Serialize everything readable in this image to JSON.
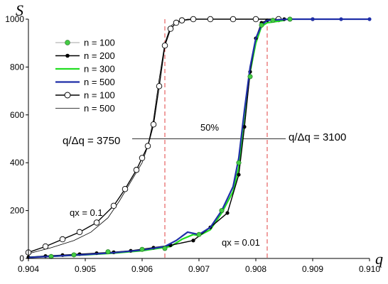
{
  "chart_data": {
    "type": "line",
    "xlabel": "q",
    "ylabel": "S",
    "xlim": [
      0.904,
      0.91
    ],
    "ylim": [
      0,
      1000
    ],
    "x_ticks": [
      "0.904",
      "0.905",
      "0.906",
      "0.907",
      "0.908",
      "0.909",
      "0.910"
    ],
    "y_ticks": [
      "0",
      "200",
      "400",
      "600",
      "800",
      "1000"
    ],
    "grid": false,
    "legend_position": "top-left",
    "annotations": {
      "label_left": "q/Δq = 3750",
      "label_right": "q/Δq = 3100",
      "percent_label": "50%",
      "qx_left": "qx = 0.1",
      "qx_right": "qx = 0.01",
      "half_level": 500,
      "vline_left": 0.9064,
      "vline_right": 0.9082
    },
    "series": [
      {
        "name": "n = 100",
        "color": "#33cc33",
        "marker": "filled-circle-green",
        "line": "none",
        "x": [
          0.9044,
          0.9048,
          0.9054,
          0.906,
          0.9064,
          0.907,
          0.9074,
          0.9077,
          0.9079,
          0.9081,
          0.9083,
          0.9086
        ],
        "y": [
          8,
          15,
          28,
          38,
          42,
          100,
          200,
          400,
          760,
          975,
          995,
          1000
        ]
      },
      {
        "name": "n = 200",
        "color": "#000000",
        "marker": "filled-circle-black",
        "line": "solid",
        "x": [
          0.904,
          0.9043,
          0.9046,
          0.9049,
          0.9052,
          0.9055,
          0.9058,
          0.9062,
          0.9065,
          0.9069,
          0.9072,
          0.9075,
          0.9077,
          0.9078,
          0.9079,
          0.908,
          0.9081,
          0.9082,
          0.9085,
          0.909
        ],
        "y": [
          5,
          10,
          14,
          18,
          22,
          26,
          32,
          45,
          55,
          75,
          130,
          190,
          350,
          550,
          780,
          920,
          985,
          995,
          1000,
          1000
        ]
      },
      {
        "name": "n = 300",
        "color": "#22dd22",
        "marker": "none",
        "line": "solid",
        "x": [
          0.904,
          0.9045,
          0.905,
          0.9055,
          0.906,
          0.9065,
          0.9067,
          0.9069,
          0.907,
          0.9072,
          0.9074,
          0.9076,
          0.9077,
          0.9078,
          0.9079,
          0.908,
          0.9081,
          0.9082,
          0.9085
        ],
        "y": [
          5,
          10,
          15,
          22,
          32,
          50,
          80,
          100,
          95,
          120,
          190,
          280,
          380,
          600,
          780,
          900,
          970,
          985,
          995
        ]
      },
      {
        "name": "n = 500",
        "color": "#1f2fa8",
        "marker": "none",
        "line": "solid",
        "x": [
          0.904,
          0.9045,
          0.905,
          0.9055,
          0.906,
          0.9064,
          0.9066,
          0.9068,
          0.907,
          0.9072,
          0.9074,
          0.9076,
          0.9077,
          0.9078,
          0.9079,
          0.908,
          0.9081,
          0.9082,
          0.9086,
          0.909,
          0.9095,
          0.91
        ],
        "y": [
          4,
          10,
          16,
          24,
          35,
          50,
          75,
          110,
          100,
          130,
          200,
          300,
          420,
          620,
          800,
          920,
          975,
          995,
          1000,
          1000,
          1000,
          1000
        ]
      },
      {
        "name": "n = 100",
        "color": "#000000",
        "marker": "open-circle",
        "line": "solid",
        "x": [
          0.904,
          0.9043,
          0.9046,
          0.9049,
          0.9052,
          0.9055,
          0.9057,
          0.9059,
          0.906,
          0.9061,
          0.9062,
          0.9063,
          0.9064,
          0.9065,
          0.9066,
          0.9067,
          0.9069,
          0.9072,
          0.9076,
          0.908,
          0.9084
        ],
        "y": [
          25,
          50,
          80,
          110,
          150,
          220,
          290,
          370,
          420,
          470,
          560,
          720,
          890,
          960,
          985,
          995,
          1000,
          1000,
          1000,
          1000,
          1000
        ]
      },
      {
        "name": "n = 500",
        "color": "#000000",
        "marker": "none",
        "line": "thin",
        "x": [
          0.904,
          0.9044,
          0.9048,
          0.9051,
          0.9054,
          0.9056,
          0.9058,
          0.906,
          0.9061,
          0.9062,
          0.9063,
          0.9064,
          0.9065,
          0.9066,
          0.9068,
          0.9072,
          0.908,
          0.909,
          0.91
        ],
        "y": [
          20,
          45,
          75,
          110,
          170,
          240,
          320,
          400,
          470,
          580,
          750,
          900,
          970,
          990,
          1000,
          1000,
          1000,
          1000,
          1000
        ]
      }
    ]
  }
}
